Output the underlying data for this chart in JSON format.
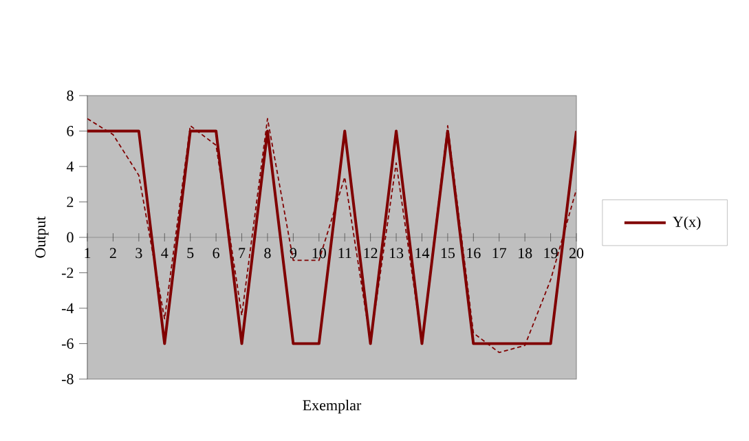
{
  "chart_data": {
    "type": "line",
    "xlabel": "Exemplar",
    "ylabel": "Output",
    "categories": [
      "1",
      "2",
      "3",
      "4",
      "5",
      "6",
      "7",
      "8",
      "9",
      "10",
      "11",
      "12",
      "13",
      "14",
      "15",
      "16",
      "17",
      "18",
      "19",
      "20"
    ],
    "series": [
      {
        "name": "Y(x)",
        "color": "#800000",
        "line_style": "solid",
        "values": [
          6,
          6,
          6,
          -6,
          6,
          6,
          -6,
          6,
          -6,
          -6,
          6,
          -6,
          6,
          -6,
          6,
          -6,
          -6,
          -6,
          -6,
          6
        ]
      },
      {
        "color": "#800000",
        "line_style": "dashed",
        "values": [
          6.7,
          5.8,
          3.5,
          -4.6,
          6.3,
          5.2,
          -4.4,
          6.7,
          -1.3,
          -1.3,
          3.4,
          -5.9,
          4.2,
          -5.9,
          6.3,
          -5.4,
          -6.5,
          -6.1,
          -2.4,
          2.7
        ]
      }
    ],
    "ylim": [
      -8,
      8
    ],
    "yticks": [
      -8,
      -6,
      -4,
      -2,
      0,
      2,
      4,
      6,
      8
    ],
    "grid": false,
    "legend": "right",
    "marker": "none"
  }
}
